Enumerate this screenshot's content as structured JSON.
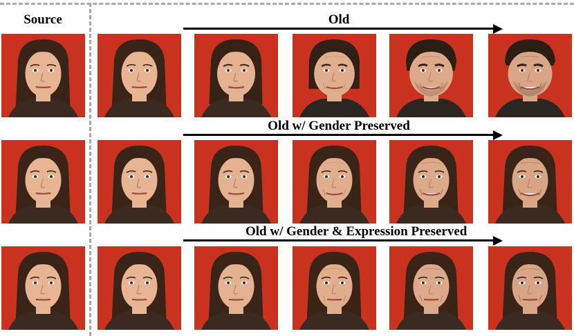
{
  "source_label": "Source",
  "rows": [
    {
      "title": "Old",
      "faces": [
        {
          "subject": "source-female",
          "age_stage": 0,
          "masculinity": 0.0
        },
        {
          "subject": "edited",
          "age_stage": 0,
          "masculinity": 0.0
        },
        {
          "subject": "edited",
          "age_stage": 1,
          "masculinity": 0.25
        },
        {
          "subject": "edited",
          "age_stage": 2,
          "masculinity": 0.55
        },
        {
          "subject": "edited",
          "age_stage": 3,
          "masculinity": 0.9
        },
        {
          "subject": "edited",
          "age_stage": 4,
          "masculinity": 1.0
        }
      ]
    },
    {
      "title": "Old w/ Gender Preserved",
      "faces": [
        {
          "subject": "source-female",
          "age_stage": 0,
          "masculinity": 0.0
        },
        {
          "subject": "edited",
          "age_stage": 0,
          "masculinity": 0.0
        },
        {
          "subject": "edited",
          "age_stage": 1,
          "masculinity": 0.0
        },
        {
          "subject": "edited",
          "age_stage": 2,
          "masculinity": 0.0
        },
        {
          "subject": "edited",
          "age_stage": 3,
          "masculinity": 0.0
        },
        {
          "subject": "edited",
          "age_stage": 4,
          "masculinity": 0.0
        }
      ]
    },
    {
      "title": "Old w/ Gender & Expression Preserved",
      "faces": [
        {
          "subject": "source-female",
          "age_stage": 0,
          "masculinity": 0.0
        },
        {
          "subject": "edited",
          "age_stage": 0,
          "masculinity": 0.0
        },
        {
          "subject": "edited",
          "age_stage": 1,
          "masculinity": 0.0
        },
        {
          "subject": "edited",
          "age_stage": 2,
          "masculinity": 0.0
        },
        {
          "subject": "edited",
          "age_stage": 3,
          "masculinity": 0.0
        },
        {
          "subject": "edited",
          "age_stage": 4,
          "masculinity": 0.0
        }
      ]
    }
  ],
  "colors": {
    "background_red": "#c8321f",
    "skin": "#e8b594",
    "hair": "#3a2417",
    "divider": "#a9a9a9",
    "arrow": "#000000"
  }
}
